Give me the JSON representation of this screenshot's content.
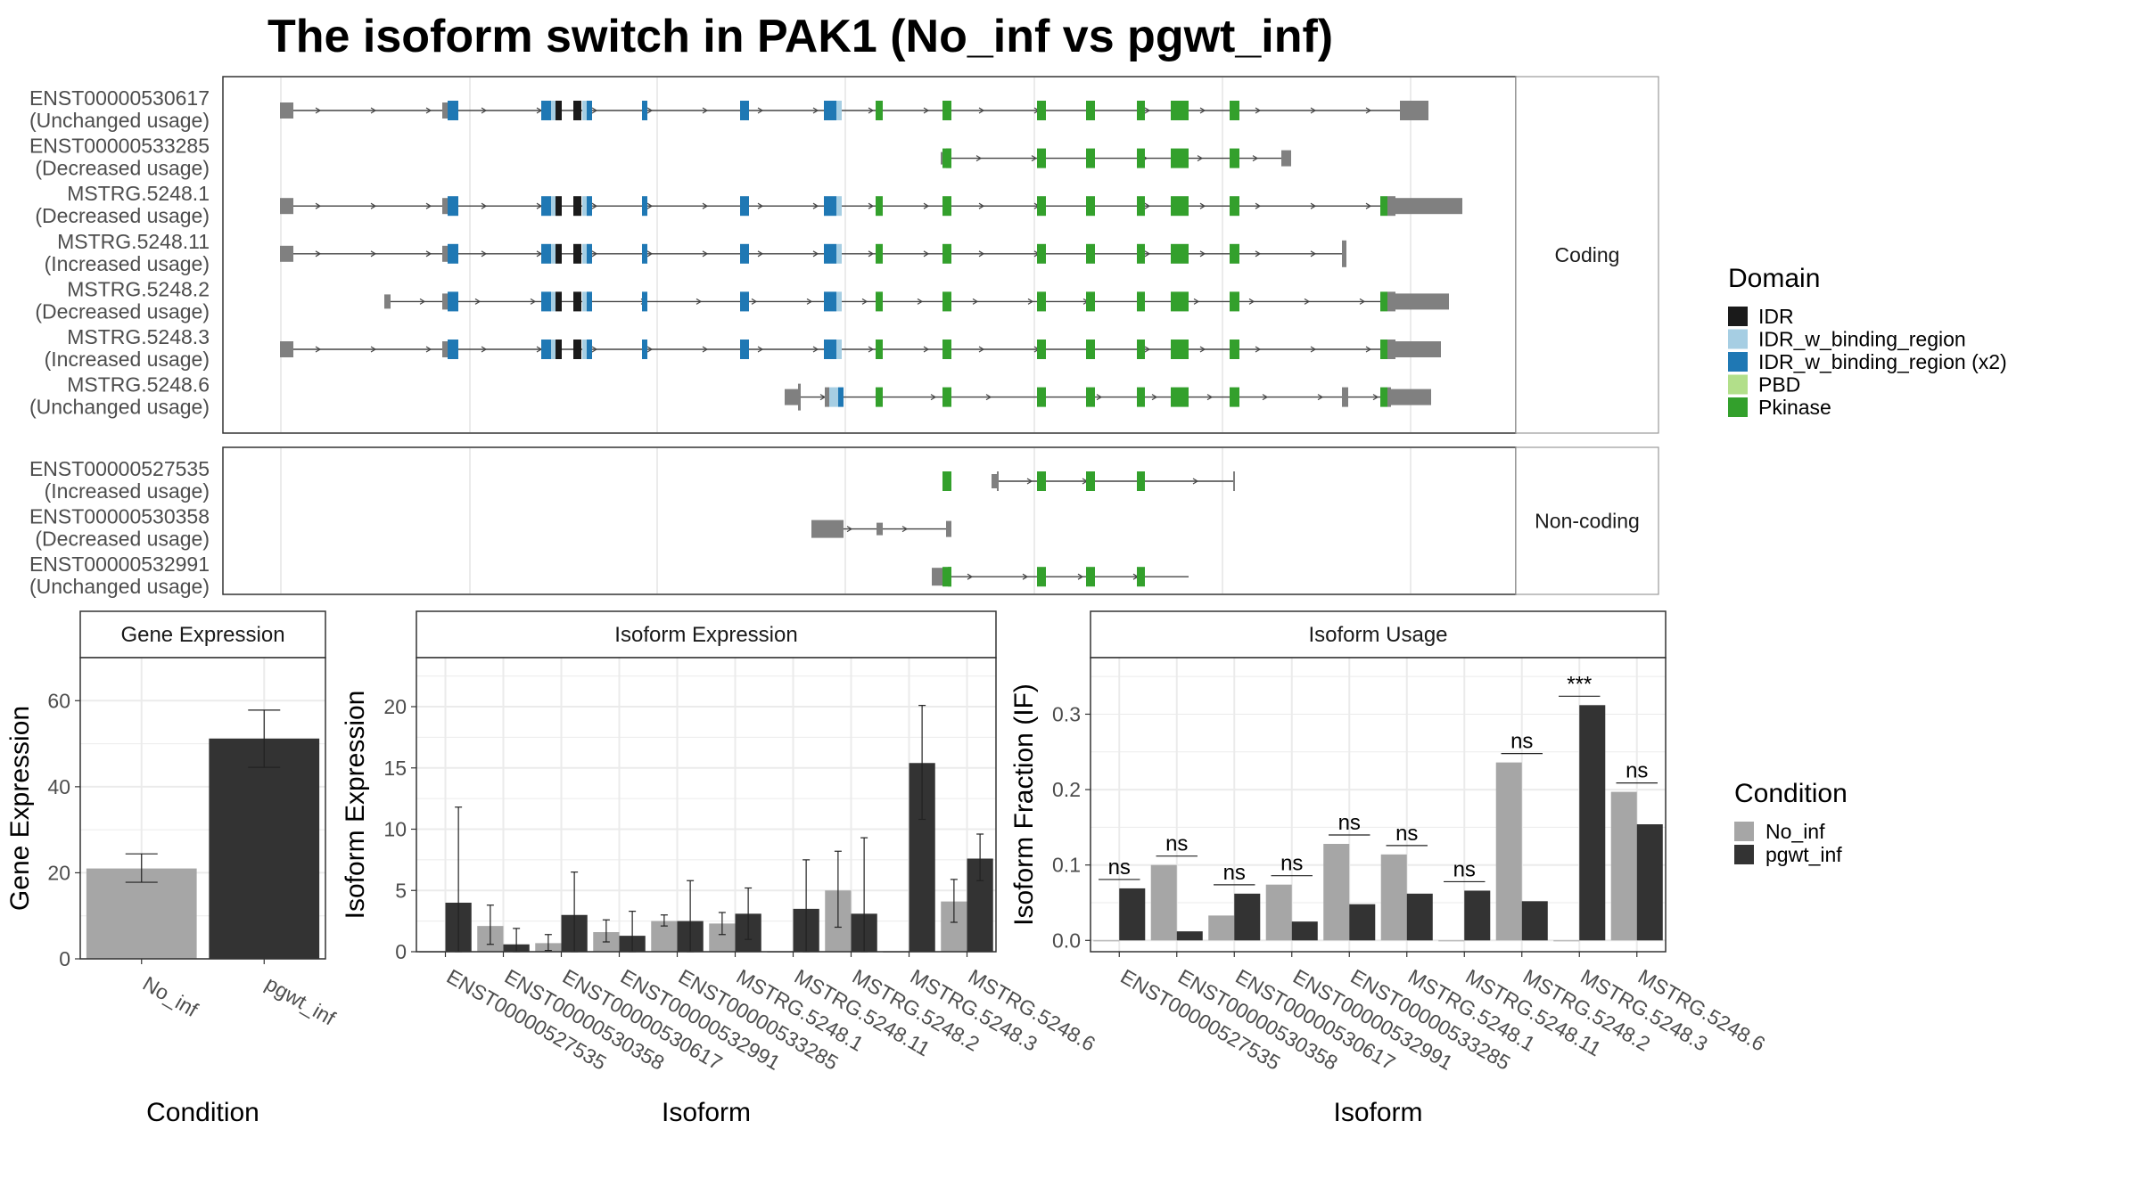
{
  "title": "The isoform switch in PAK1 (No_inf vs pgwt_inf)",
  "colors": {
    "exon": "#808080",
    "IDR": "#1a1a1a",
    "IDR_w_binding_region": "#a6cee3",
    "IDR_w_binding_region (x2)": "#1f78b4",
    "PBD": "#b2df8a",
    "Pkinase": "#33a02c",
    "No_inf": "#a6a6a6",
    "pgwt_inf": "#333333"
  },
  "structure": {
    "coding_strip": "Coding",
    "noncoding_strip": "Non-coding",
    "coding": [
      {
        "id": "ENST00000530617",
        "usage": "(Unchanged usage)"
      },
      {
        "id": "ENST00000533285",
        "usage": "(Decreased usage)"
      },
      {
        "id": "MSTRG.5248.1",
        "usage": "(Decreased usage)"
      },
      {
        "id": "MSTRG.5248.11",
        "usage": "(Increased usage)"
      },
      {
        "id": "MSTRG.5248.2",
        "usage": "(Decreased usage)"
      },
      {
        "id": "MSTRG.5248.3",
        "usage": "(Increased usage)"
      },
      {
        "id": "MSTRG.5248.6",
        "usage": "(Unchanged usage)"
      }
    ],
    "noncoding": [
      {
        "id": "ENST00000527535",
        "usage": "(Increased usage)"
      },
      {
        "id": "ENST00000530358",
        "usage": "(Decreased usage)"
      },
      {
        "id": "ENST00000532991",
        "usage": "(Unchanged usage)"
      }
    ]
  },
  "domain_legend": {
    "title": "Domain",
    "items": [
      "IDR",
      "IDR_w_binding_region",
      "IDR_w_binding_region (x2)",
      "PBD",
      "Pkinase"
    ]
  },
  "condition_legend": {
    "title": "Condition",
    "items": [
      "No_inf",
      "pgwt_inf"
    ]
  },
  "chart_data": [
    {
      "type": "bar",
      "title": "Gene Expression",
      "xlabel": "Condition",
      "ylabel": "Gene Expression",
      "ylim": [
        0,
        70
      ],
      "yticks": [
        0,
        20,
        40,
        60
      ],
      "categories": [
        "No_inf",
        "pgwt_inf"
      ],
      "values": [
        21,
        51.2
      ],
      "err_low": [
        17.8,
        44.5
      ],
      "err_high": [
        24.4,
        57.8
      ]
    },
    {
      "type": "bar",
      "title": "Isoform Expression",
      "xlabel": "Isoform",
      "ylabel": "Isoform Expression",
      "ylim": [
        0,
        24
      ],
      "yticks": [
        0,
        5,
        10,
        15,
        20
      ],
      "categories": [
        "ENST00000527535",
        "ENST00000530358",
        "ENST00000530617",
        "ENST00000532991",
        "ENST00000533285",
        "MSTRG.5248.1",
        "MSTRG.5248.11",
        "MSTRG.5248.2",
        "MSTRG.5248.3",
        "MSTRG.5248.6"
      ],
      "series": [
        {
          "name": "No_inf",
          "values": [
            0,
            2.1,
            0.7,
            1.6,
            2.5,
            2.3,
            0,
            5.0,
            0,
            4.1
          ],
          "err_low": [
            0,
            0.6,
            0.1,
            0.8,
            2.1,
            1.4,
            0,
            2.0,
            0,
            2.4
          ],
          "err_high": [
            0,
            3.8,
            1.4,
            2.6,
            3.0,
            3.2,
            0,
            8.2,
            0,
            5.9
          ]
        },
        {
          "name": "pgwt_inf",
          "values": [
            4.0,
            0.6,
            3.0,
            1.3,
            2.5,
            3.1,
            3.5,
            3.1,
            15.4,
            7.6
          ],
          "err_low": [
            0,
            0,
            0,
            0,
            0,
            1.0,
            0,
            0,
            10.8,
            5.8
          ],
          "err_high": [
            11.8,
            1.9,
            6.5,
            3.3,
            5.8,
            5.2,
            7.5,
            9.3,
            20.1,
            9.6
          ]
        }
      ]
    },
    {
      "type": "bar",
      "title": "Isoform Usage",
      "xlabel": "Isoform",
      "ylabel": "Isoform Fraction (IF)",
      "ylim": [
        -0.015,
        0.375
      ],
      "yticks": [
        0.0,
        0.1,
        0.2,
        0.3
      ],
      "ytick_labels": [
        "0.0",
        "0.1",
        "0.2",
        "0.3"
      ],
      "categories": [
        "ENST00000527535",
        "ENST00000530358",
        "ENST00000530617",
        "ENST00000532991",
        "ENST00000533285",
        "MSTRG.5248.1",
        "MSTRG.5248.11",
        "MSTRG.5248.2",
        "MSTRG.5248.3",
        "MSTRG.5248.6"
      ],
      "series": [
        {
          "name": "No_inf",
          "values": [
            0,
            0.1,
            0.033,
            0.074,
            0.128,
            0.114,
            0,
            0.236,
            0,
            0.197
          ]
        },
        {
          "name": "pgwt_inf",
          "values": [
            0.069,
            0.012,
            0.062,
            0.025,
            0.048,
            0.062,
            0.066,
            0.052,
            0.312,
            0.154
          ]
        }
      ],
      "significance": [
        "ns",
        "ns",
        "ns",
        "ns",
        "ns",
        "ns",
        "ns",
        "ns",
        "***",
        "ns"
      ]
    }
  ]
}
